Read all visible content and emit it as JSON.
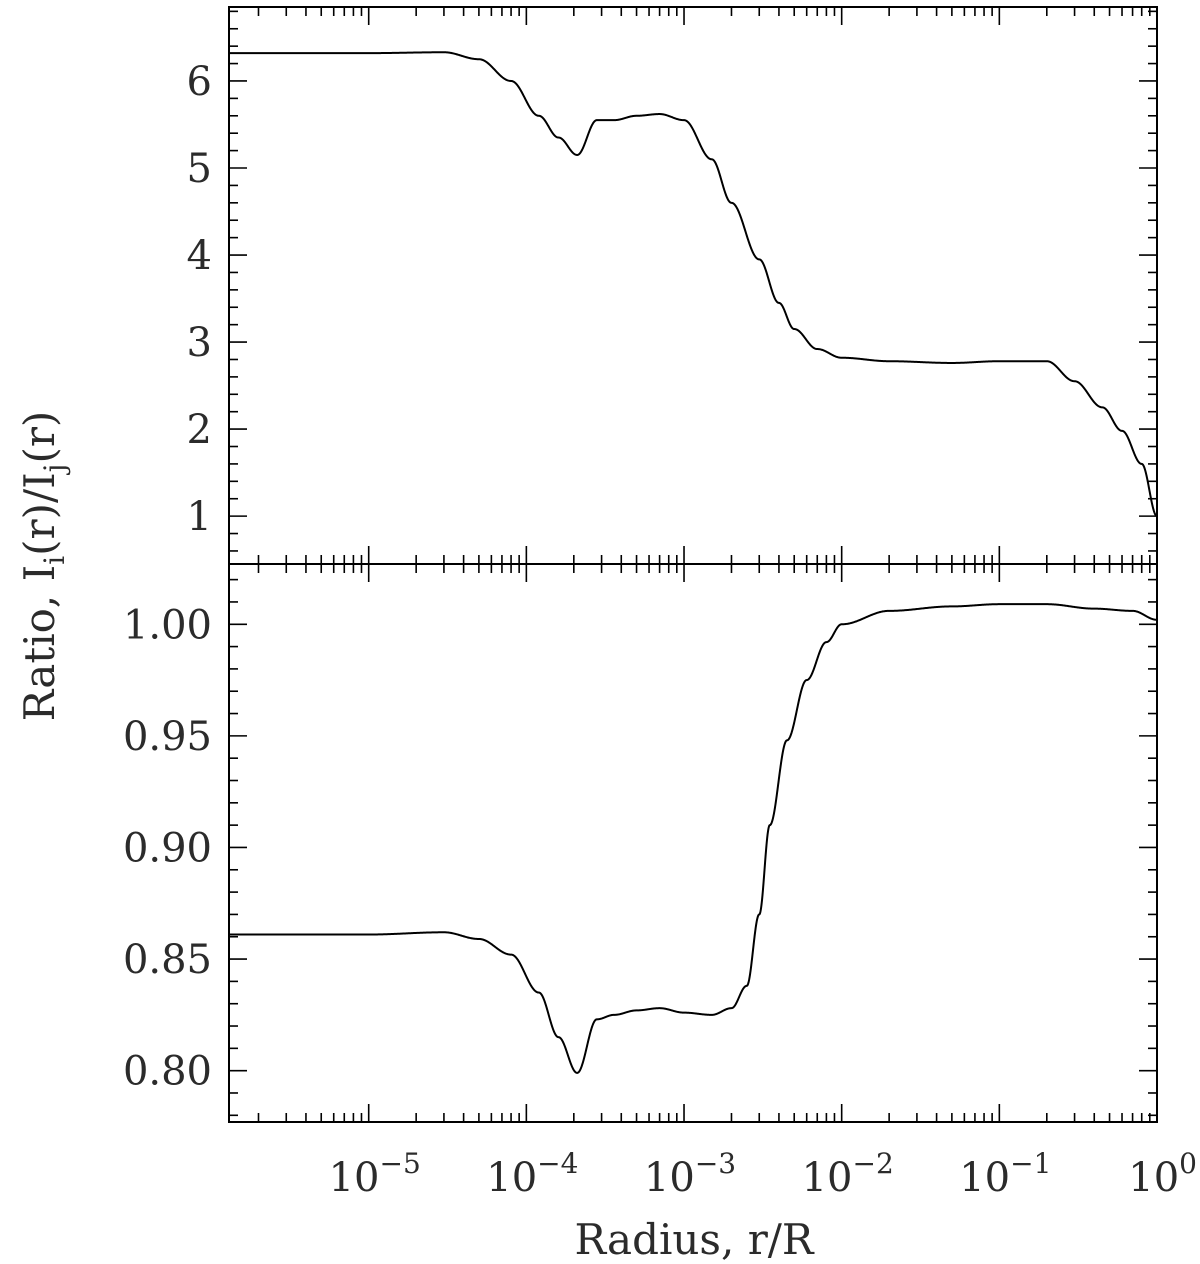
{
  "chart_data": {
    "type": "line",
    "xlabel": "Radius, r/R",
    "ylabel_prefix": "Ratio, ",
    "ylabel_I1": "I",
    "ylabel_sub_i": "i",
    "ylabel_mid": "(r)/I",
    "ylabel_sub_j": "j",
    "ylabel_end": "(r)",
    "xscale": "log",
    "xlim": [
      1.3e-06,
      1.0
    ],
    "xticks": [
      {
        "base": "10",
        "exp": "−5",
        "value": 1e-05
      },
      {
        "base": "10",
        "exp": "−4",
        "value": 0.0001
      },
      {
        "base": "10",
        "exp": "−3",
        "value": 0.001
      },
      {
        "base": "10",
        "exp": "−2",
        "value": 0.01
      },
      {
        "base": "10",
        "exp": "−1",
        "value": 0.1
      },
      {
        "base": "10",
        "exp": "0",
        "value": 1
      }
    ],
    "panels": [
      {
        "ylim": [
          0.45,
          6.85
        ],
        "yticks": [
          "1",
          "2",
          "3",
          "4",
          "5",
          "6"
        ],
        "ytick_values": [
          1,
          2,
          3,
          4,
          5,
          6
        ],
        "plateau": 6.32,
        "x": [
          1.3e-06,
          1e-05,
          3e-05,
          5e-05,
          8e-05,
          0.00012,
          0.00016,
          0.00021,
          0.00028,
          0.00036,
          0.0005,
          0.0007,
          0.001,
          0.0015,
          0.002,
          0.003,
          0.004,
          0.005,
          0.007,
          0.01,
          0.02,
          0.05,
          0.1,
          0.2,
          0.3,
          0.45,
          0.6,
          0.8,
          1.0
        ],
        "y": [
          6.32,
          6.32,
          6.33,
          6.25,
          6.0,
          5.6,
          5.35,
          5.15,
          5.55,
          5.55,
          5.6,
          5.62,
          5.55,
          5.1,
          4.6,
          3.95,
          3.45,
          3.15,
          2.92,
          2.82,
          2.78,
          2.76,
          2.78,
          2.78,
          2.55,
          2.25,
          1.98,
          1.6,
          1.0
        ]
      },
      {
        "ylim": [
          0.777,
          1.027
        ],
        "yticks": [
          "0.80",
          "0.85",
          "0.90",
          "0.95",
          "1.00"
        ],
        "ytick_values": [
          0.8,
          0.85,
          0.9,
          0.95,
          1.0
        ],
        "plateau": 0.861,
        "x": [
          1.3e-06,
          1e-05,
          3e-05,
          5e-05,
          8e-05,
          0.00012,
          0.00016,
          0.00021,
          0.00028,
          0.00036,
          0.0005,
          0.0007,
          0.001,
          0.0015,
          0.002,
          0.0025,
          0.003,
          0.0035,
          0.0045,
          0.006,
          0.008,
          0.01,
          0.02,
          0.05,
          0.1,
          0.2,
          0.4,
          0.7,
          1.0
        ],
        "y": [
          0.861,
          0.861,
          0.862,
          0.859,
          0.852,
          0.835,
          0.815,
          0.799,
          0.823,
          0.825,
          0.827,
          0.828,
          0.826,
          0.825,
          0.828,
          0.838,
          0.87,
          0.91,
          0.948,
          0.975,
          0.992,
          1.0,
          1.006,
          1.008,
          1.009,
          1.009,
          1.007,
          1.006,
          1.002
        ]
      }
    ]
  }
}
